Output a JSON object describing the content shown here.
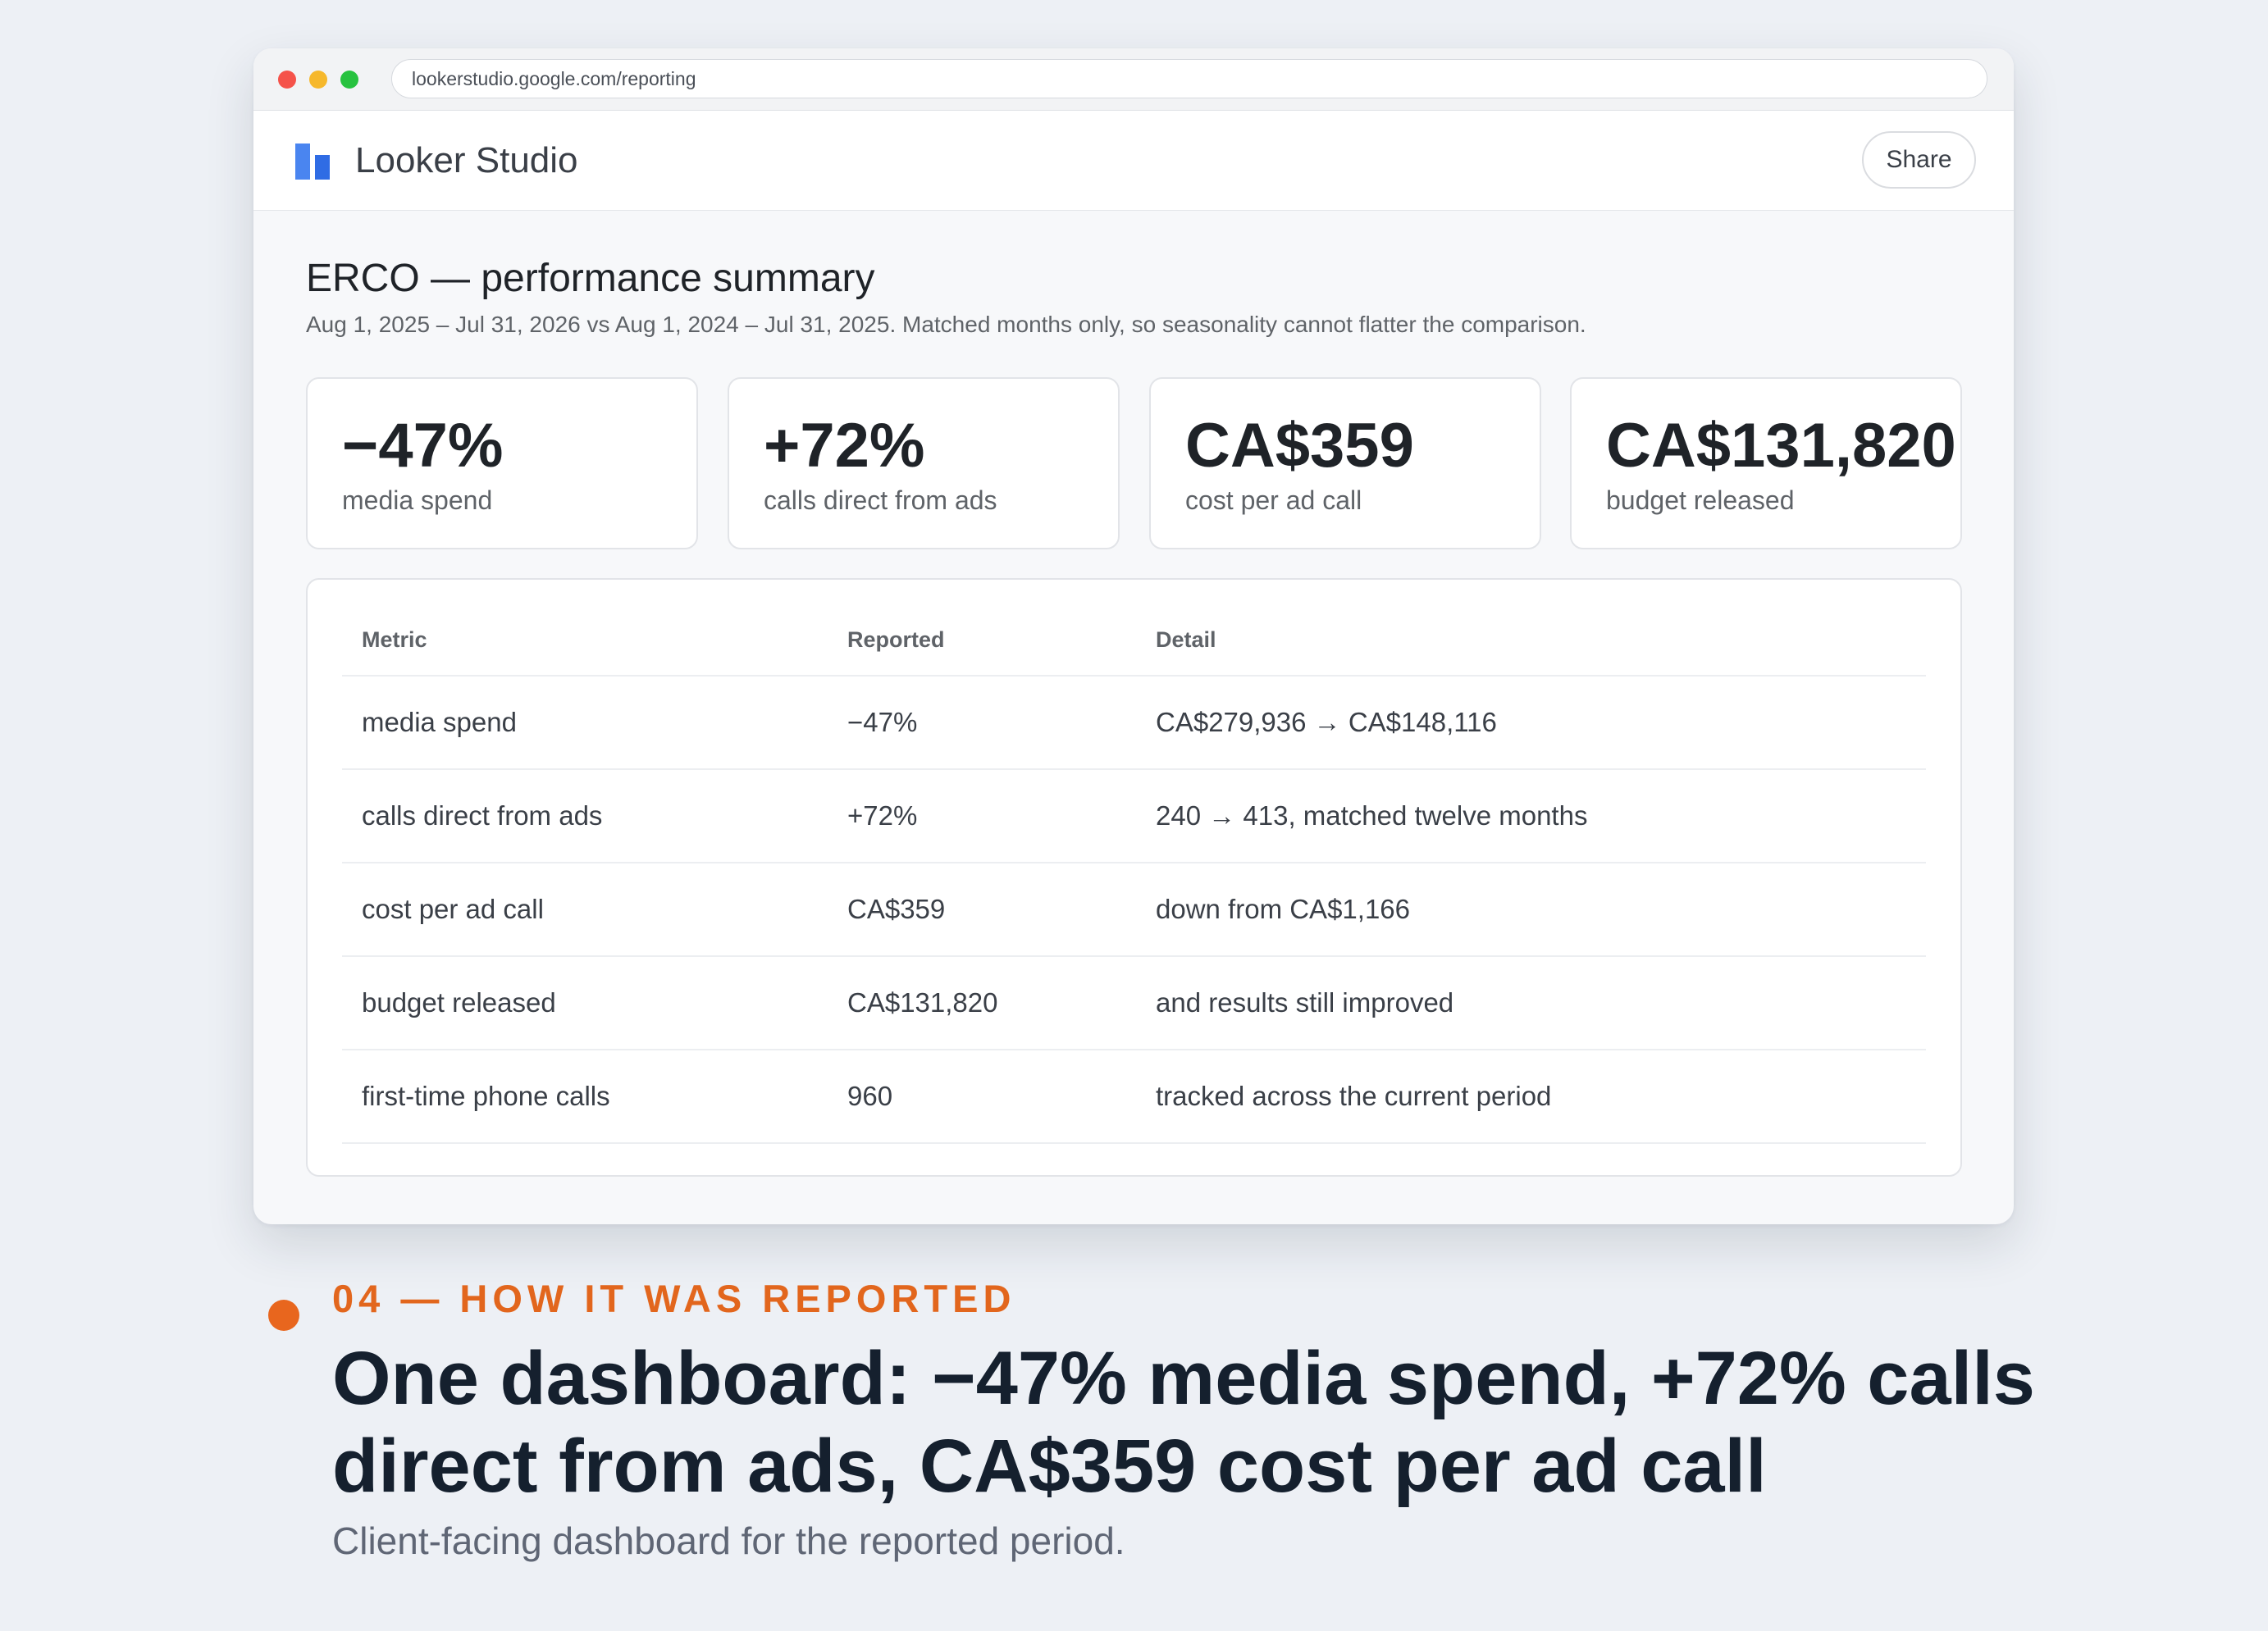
{
  "browser": {
    "url": "lookerstudio.google.com/reporting"
  },
  "app": {
    "name": "Looker Studio",
    "share_label": "Share"
  },
  "report": {
    "title": "ERCO — performance summary",
    "subtitle": "Aug 1, 2025 – Jul 31, 2026 vs Aug 1, 2024 – Jul 31, 2025. Matched months only, so seasonality cannot flatter the comparison."
  },
  "kpis": [
    {
      "value": "−47%",
      "label": "media spend"
    },
    {
      "value": "+72%",
      "label": "calls direct from ads"
    },
    {
      "value": "CA$359",
      "label": "cost per ad call"
    },
    {
      "value": "CA$131,820",
      "label": "budget released"
    }
  ],
  "table": {
    "headers": [
      "Metric",
      "Reported",
      "Detail"
    ],
    "rows": [
      [
        "media spend",
        "−47%",
        "CA$279,936 → CA$148,116"
      ],
      [
        "calls direct from ads",
        "+72%",
        "240 → 413, matched twelve months"
      ],
      [
        "cost per ad call",
        "CA$359",
        "down from CA$1,166"
      ],
      [
        "budget released",
        "CA$131,820",
        "and results still improved"
      ],
      [
        "first-time phone calls",
        "960",
        "tracked across the current period"
      ]
    ]
  },
  "caption": {
    "eyebrow": "04 — HOW IT WAS REPORTED",
    "headline_line1": "One dashboard: −47% media spend, +72% calls",
    "headline_line2": "direct from ads, CA$359 cost per ad call",
    "description": "Client-facing dashboard for the reported period."
  },
  "colors": {
    "accent": "#e2661d",
    "logo_blue": "#4a85f0",
    "headline": "#15202e"
  }
}
